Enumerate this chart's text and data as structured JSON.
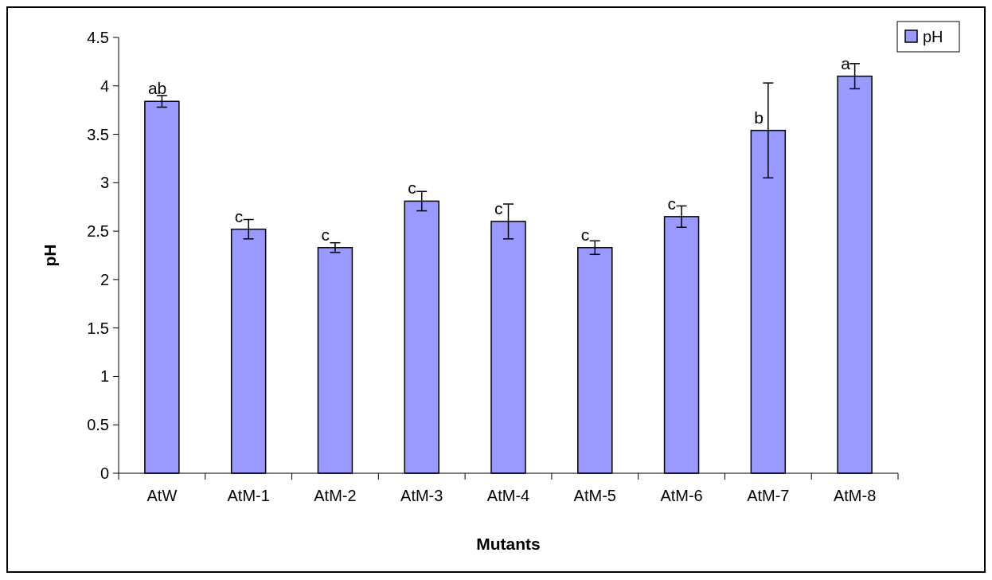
{
  "chart_data": {
    "type": "bar",
    "xlabel": "Mutants",
    "ylabel": "pH",
    "categories": [
      "AtW",
      "AtM-1",
      "AtM-2",
      "AtM-3",
      "AtM-4",
      "AtM-5",
      "AtM-6",
      "AtM-7",
      "AtM-8"
    ],
    "series": [
      {
        "name": "pH",
        "color": "#9999ff",
        "values": [
          3.84,
          2.52,
          2.33,
          2.81,
          2.6,
          2.33,
          2.65,
          3.54,
          4.1
        ],
        "errors": [
          0.06,
          0.1,
          0.05,
          0.1,
          0.18,
          0.07,
          0.11,
          0.49,
          0.13
        ]
      }
    ],
    "ylim": [
      0,
      4.5
    ],
    "yticks": [
      0,
      0.5,
      1,
      1.5,
      2,
      2.5,
      3,
      3.5,
      4,
      4.5
    ],
    "legend": "top right",
    "annotations": [
      {
        "text": "ab",
        "x": "AtW",
        "y": 3.84
      },
      {
        "text": "c",
        "x": "AtM-1",
        "y": 2.52
      },
      {
        "text": "c",
        "x": "AtM-2",
        "y": 2.33
      },
      {
        "text": "c",
        "x": "AtM-3",
        "y": 2.81
      },
      {
        "text": "c",
        "x": "AtM-4",
        "y": 2.6
      },
      {
        "text": "c",
        "x": "AtM-5",
        "y": 2.33
      },
      {
        "text": "c",
        "x": "AtM-6",
        "y": 2.65
      },
      {
        "text": "b",
        "x": "AtM-7",
        "y": 3.54
      },
      {
        "text": "a",
        "x": "AtM-8",
        "y": 4.1
      }
    ]
  }
}
